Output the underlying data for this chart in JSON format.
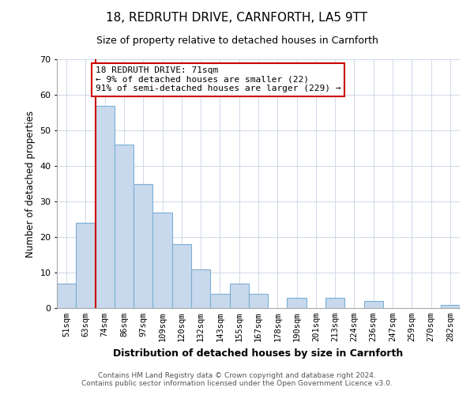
{
  "title": "18, REDRUTH DRIVE, CARNFORTH, LA5 9TT",
  "subtitle": "Size of property relative to detached houses in Carnforth",
  "xlabel": "Distribution of detached houses by size in Carnforth",
  "ylabel": "Number of detached properties",
  "footer_line1": "Contains HM Land Registry data © Crown copyright and database right 2024.",
  "footer_line2": "Contains public sector information licensed under the Open Government Licence v3.0.",
  "bar_labels": [
    "51sqm",
    "63sqm",
    "74sqm",
    "86sqm",
    "97sqm",
    "109sqm",
    "120sqm",
    "132sqm",
    "143sqm",
    "155sqm",
    "167sqm",
    "178sqm",
    "190sqm",
    "201sqm",
    "213sqm",
    "224sqm",
    "236sqm",
    "247sqm",
    "259sqm",
    "270sqm",
    "282sqm"
  ],
  "bar_values": [
    7,
    24,
    57,
    46,
    35,
    27,
    18,
    11,
    4,
    7,
    4,
    0,
    3,
    0,
    3,
    0,
    2,
    0,
    0,
    0,
    1
  ],
  "bar_color": "#c8d9ed",
  "bar_edge_color": "#7bafd4",
  "highlight_line_color": "#cc0000",
  "ylim": [
    0,
    70
  ],
  "yticks": [
    0,
    10,
    20,
    30,
    40,
    50,
    60,
    70
  ],
  "annotation_text": "18 REDRUTH DRIVE: 71sqm\n← 9% of detached houses are smaller (22)\n91% of semi-detached houses are larger (229) →",
  "annotation_box_color": "#ffffff",
  "annotation_box_edge": "#cc0000",
  "background_color": "#ffffff",
  "grid_color": "#d0d8e8"
}
